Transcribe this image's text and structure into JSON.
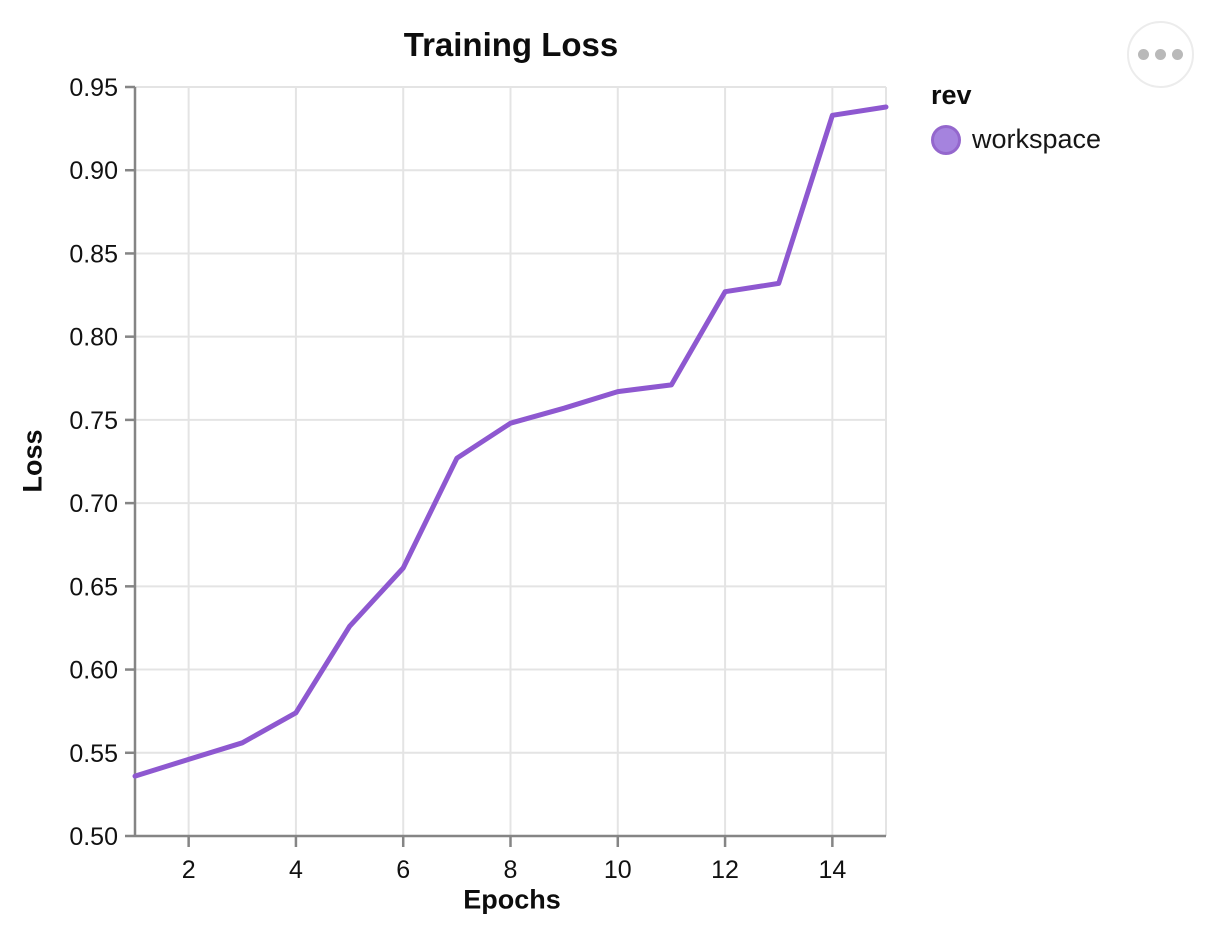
{
  "panel": {
    "menu_button": {
      "icon": "ellipsis"
    }
  },
  "chart_data": {
    "type": "line",
    "title": "Training Loss",
    "xlabel": "Epochs",
    "ylabel": "Loss",
    "x": [
      1,
      2,
      3,
      4,
      5,
      6,
      7,
      8,
      9,
      10,
      11,
      12,
      13,
      14,
      15
    ],
    "series": [
      {
        "name": "workspace",
        "color": "#8e58d0",
        "values": [
          0.536,
          0.546,
          0.556,
          0.574,
          0.626,
          0.661,
          0.727,
          0.748,
          0.757,
          0.767,
          0.771,
          0.827,
          0.832,
          0.933,
          0.938
        ]
      }
    ],
    "xlim": [
      1,
      15
    ],
    "ylim": [
      0.5,
      0.95
    ],
    "xticks": [
      2,
      4,
      6,
      8,
      10,
      12,
      14
    ],
    "yticks": [
      0.5,
      0.55,
      0.6,
      0.65,
      0.7,
      0.75,
      0.8,
      0.85,
      0.9,
      0.95
    ],
    "ytick_labels": [
      "0.50",
      "0.55",
      "0.60",
      "0.65",
      "0.70",
      "0.75",
      "0.80",
      "0.85",
      "0.90",
      "0.95"
    ],
    "grid": true,
    "grid_color": "#e4e4e4",
    "axis_color": "#858585",
    "legend": {
      "title": "rev",
      "position": "right",
      "items": [
        {
          "label": "workspace",
          "color": "#a583de"
        }
      ]
    }
  }
}
